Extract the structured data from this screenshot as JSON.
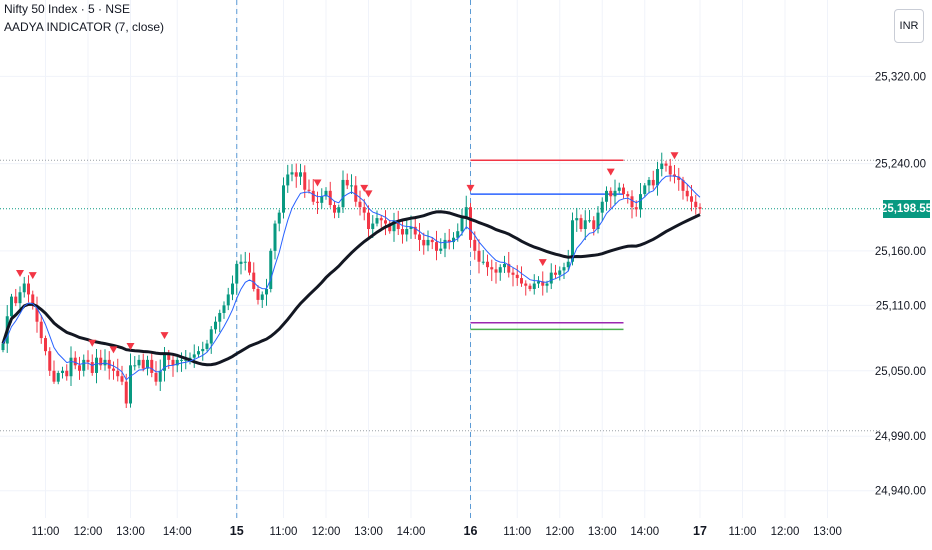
{
  "header": {
    "symbol": "Nifty 50 Index · 5 · NSE",
    "indicator": "AADYA INDICATOR (7, close)",
    "currency": "INR"
  },
  "last_price": {
    "label": "25,198.55",
    "value": 25198.55,
    "color": "#089981"
  },
  "colors": {
    "up": "#089981",
    "down": "#f23645",
    "fast_ma": "#2962ff",
    "slow_ma": "#131722",
    "marker": "#f23645",
    "level_red": "#f23645",
    "level_blue": "#2962ff",
    "level_purple": "#9c27b0",
    "level_green": "#4caf50",
    "session": "#5b9bd5"
  },
  "chart_data": {
    "type": "candlestick",
    "ylim": [
      24915,
      25390
    ],
    "y_ticks": [
      {
        "value": 25320,
        "label": "25,320.00"
      },
      {
        "value": 25240,
        "label": "25,240.00"
      },
      {
        "value": 25160,
        "label": "25,160.00"
      },
      {
        "value": 25110,
        "label": "25,110.00"
      },
      {
        "value": 25050,
        "label": "25,050.00"
      },
      {
        "value": 24990,
        "label": "24,990.00"
      },
      {
        "value": 24940,
        "label": "24,940.00"
      }
    ],
    "x_ticks": [
      {
        "bar": 10,
        "label": "11:00"
      },
      {
        "bar": 20,
        "label": "12:00"
      },
      {
        "bar": 30,
        "label": "13:00"
      },
      {
        "bar": 41,
        "label": "14:00"
      },
      {
        "bar": 55,
        "label": "15"
      },
      {
        "bar": 66,
        "label": "11:00"
      },
      {
        "bar": 76,
        "label": "12:00"
      },
      {
        "bar": 86,
        "label": "13:00"
      },
      {
        "bar": 96,
        "label": "14:00"
      },
      {
        "bar": 110,
        "label": "16"
      },
      {
        "bar": 121,
        "label": "11:00"
      },
      {
        "bar": 131,
        "label": "12:00"
      },
      {
        "bar": 141,
        "label": "13:00"
      },
      {
        "bar": 151,
        "label": "14:00"
      },
      {
        "bar": 164,
        "label": "17"
      },
      {
        "bar": 174,
        "label": "11:00"
      },
      {
        "bar": 184,
        "label": "12:00"
      },
      {
        "bar": 194,
        "label": "13:00"
      }
    ],
    "session_breaks": [
      55,
      110
    ],
    "horizontal_lines": [
      {
        "value": 25243,
        "color": "#9aa0a6"
      },
      {
        "value": 25198.55,
        "color": "#089981"
      },
      {
        "value": 24995,
        "color": "#9aa0a6"
      }
    ],
    "levels": [
      {
        "from": 110,
        "to": 146,
        "value": 25243,
        "color": "#f23645"
      },
      {
        "from": 110,
        "to": 146,
        "value": 25212,
        "color": "#2962ff"
      },
      {
        "from": 110,
        "to": 146,
        "value": 25094,
        "color": "#9c27b0"
      },
      {
        "from": 110,
        "to": 146,
        "value": 25088,
        "color": "#4caf50"
      }
    ],
    "sell_markers": [
      4,
      7,
      21,
      26,
      30,
      38,
      74,
      85,
      86,
      110,
      127,
      143,
      158
    ],
    "series": [
      {
        "name": "close",
        "values": [
          25075,
          25100,
          25118,
          25112,
          25122,
          25130,
          25120,
          25110,
          25095,
          25080,
          25068,
          25050,
          25040,
          25048,
          25050,
          25045,
          25062,
          25055,
          25050,
          25060,
          25058,
          25048,
          25062,
          25055,
          25060,
          25052,
          25050,
          25045,
          25040,
          25020,
          25055,
          25055,
          25060,
          25052,
          25060,
          25048,
          25040,
          25050,
          25065,
          25060,
          25055,
          25060,
          25060,
          25060,
          25062,
          25065,
          25068,
          25070,
          25075,
          25088,
          25095,
          25103,
          25110,
          25120,
          25130,
          25148,
          25150,
          25150,
          25140,
          25125,
          25115,
          25120,
          25125,
          25160,
          25185,
          25195,
          25220,
          25230,
          25232,
          25228,
          25232,
          25216,
          25215,
          25205,
          25204,
          25210,
          25215,
          25202,
          25195,
          25200,
          25225,
          25220,
          25220,
          25205,
          25200,
          25195,
          25180,
          25185,
          25190,
          25188,
          25185,
          25178,
          25188,
          25180,
          25175,
          25180,
          25182,
          25175,
          25170,
          25165,
          25170,
          25168,
          25160,
          25162,
          25170,
          25168,
          25172,
          25178,
          25190,
          25200,
          25170,
          25160,
          25150,
          25150,
          25145,
          25143,
          25140,
          25145,
          25148,
          25140,
          25138,
          25135,
          25130,
          25128,
          25125,
          25130,
          25132,
          25128,
          25130,
          25140,
          25138,
          25142,
          25145,
          25150,
          25188,
          25190,
          25180,
          25188,
          25188,
          25180,
          25195,
          25205,
          25215,
          25210,
          25215,
          25218,
          25212,
          25210,
          25200,
          25198,
          25212,
          25220,
          25225,
          25220,
          25235,
          25240,
          25238,
          25230,
          25228,
          25225,
          25215,
          25210,
          25205,
          25200,
          25198.55
        ]
      }
    ]
  }
}
